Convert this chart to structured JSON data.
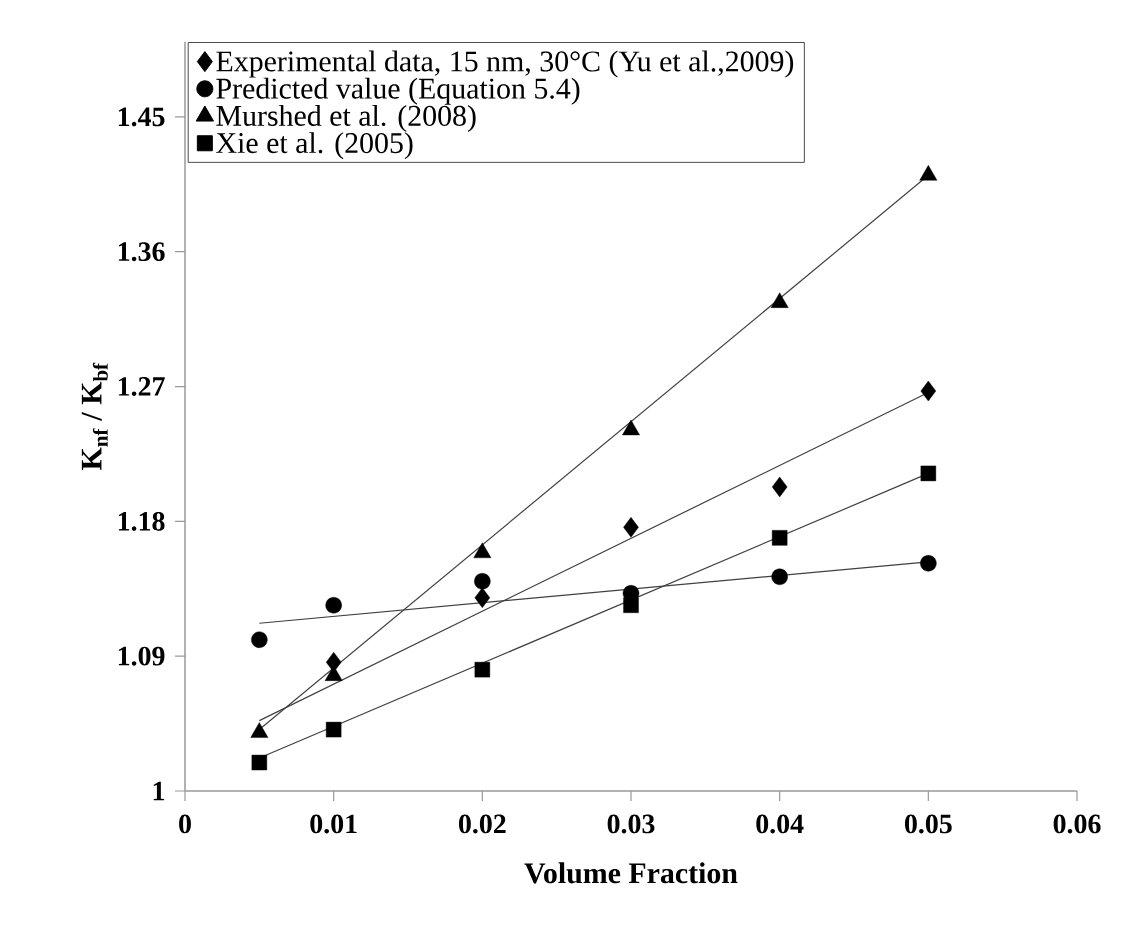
{
  "chart_data": {
    "type": "scatter",
    "xlabel": "Volume Fraction",
    "ylabel": "K$_{nf}$ / K$_{bf}$",
    "xlim": [
      0,
      0.06
    ],
    "xticks": [
      0,
      0.01,
      0.02,
      0.03,
      0.04,
      0.05,
      0.06
    ],
    "ylim": [
      1,
      1.5
    ],
    "yticks": [
      1,
      1.09,
      1.18,
      1.27,
      1.36,
      1.45
    ],
    "grid": false,
    "legend": "top left",
    "series": [
      {
        "name": "Experimental data, 15 nm, 30°C (Yu et al.,2009)",
        "color": "#000000",
        "marker": "diamond",
        "x": [
          0.01,
          0.02,
          0.03,
          0.04,
          0.05
        ],
        "values": [
          1.086,
          1.129,
          1.176,
          1.203,
          1.267
        ]
      },
      {
        "name": "Predicted value (Equation 5.4)",
        "color": "#000000",
        "marker": "circle",
        "x": [
          0.005,
          0.01,
          0.02,
          0.03,
          0.04,
          0.05
        ],
        "values": [
          1.101,
          1.124,
          1.14,
          1.132,
          1.143,
          1.152
        ]
      },
      {
        "name": "Murshed et al. (2008)",
        "color": "#000000",
        "marker": "triangle",
        "x": [
          0.005,
          0.01,
          0.02,
          0.03,
          0.04,
          0.05
        ],
        "values": [
          1.039,
          1.077,
          1.159,
          1.241,
          1.326,
          1.411
        ]
      },
      {
        "name": "Xie et al. (2005)",
        "color": "#000000",
        "marker": "square",
        "x": [
          0.005,
          0.01,
          0.02,
          0.03,
          0.04,
          0.05
        ],
        "values": [
          1.019,
          1.041,
          1.081,
          1.124,
          1.169,
          1.212
        ]
      },
      {
        "type": "line",
        "color": "#404040",
        "marker": "none",
        "x": [
          0.005,
          0.05
        ],
        "values": [
          1.047,
          1.266
        ]
      },
      {
        "type": "line",
        "color": "#404040",
        "marker": "none",
        "x": [
          0.005,
          0.05
        ],
        "values": [
          1.112,
          1.153
        ]
      },
      {
        "type": "line",
        "color": "#404040",
        "marker": "none",
        "x": [
          0.005,
          0.05
        ],
        "values": [
          1.041,
          1.411
        ]
      },
      {
        "type": "line",
        "color": "#404040",
        "marker": "none",
        "x": [
          0.005,
          0.05
        ],
        "values": [
          1.022,
          1.212
        ]
      }
    ]
  }
}
